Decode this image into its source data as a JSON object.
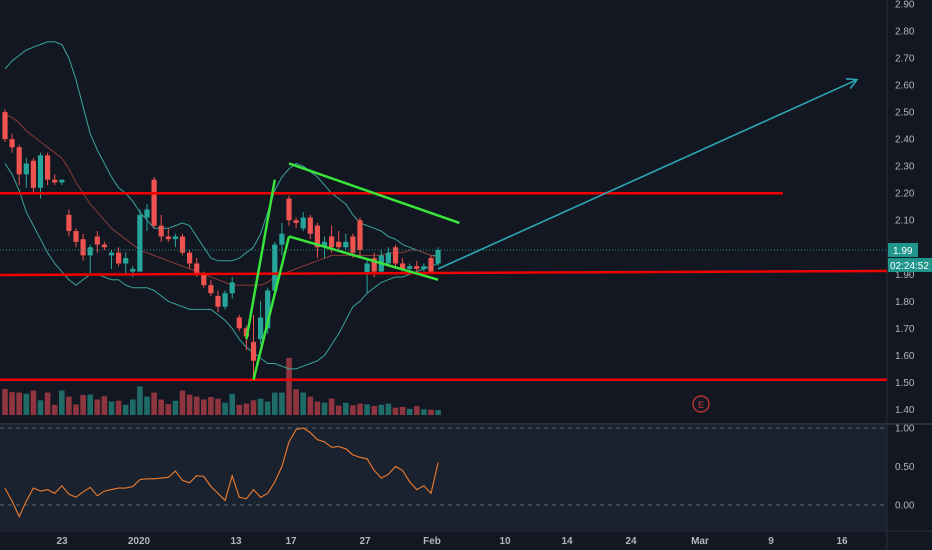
{
  "chart_data": [
    {
      "type": "candlestick",
      "title": "",
      "y_axis": {
        "ticks": [
          "2.90",
          "2.80",
          "2.70",
          "2.60",
          "2.50",
          "2.40",
          "2.30",
          "2.20",
          "2.10",
          "2.00",
          "1.90",
          "1.80",
          "1.70",
          "1.60",
          "1.50",
          "1.40"
        ],
        "range": [
          1.36,
          2.92
        ],
        "position": "right"
      },
      "x_axis": {
        "ticks": [
          "23",
          "2020",
          "13",
          "17",
          "27",
          "Feb",
          "10",
          "14",
          "24",
          "Mar",
          "9",
          "16"
        ]
      },
      "last_price": {
        "value": "1.99",
        "countdown": "02:24:52"
      },
      "candles": [
        {
          "o": 2.5,
          "h": 2.51,
          "l": 2.39,
          "c": 2.4
        },
        {
          "o": 2.4,
          "h": 2.42,
          "l": 2.35,
          "c": 2.37
        },
        {
          "o": 2.37,
          "h": 2.38,
          "l": 2.23,
          "c": 2.27
        },
        {
          "o": 2.27,
          "h": 2.33,
          "l": 2.22,
          "c": 2.31
        },
        {
          "o": 2.32,
          "h": 2.33,
          "l": 2.2,
          "c": 2.22
        },
        {
          "o": 2.22,
          "h": 2.35,
          "l": 2.18,
          "c": 2.34
        },
        {
          "o": 2.34,
          "h": 2.35,
          "l": 2.23,
          "c": 2.25
        },
        {
          "o": 2.25,
          "h": 2.27,
          "l": 2.23,
          "c": 2.24
        },
        {
          "o": 2.24,
          "h": 2.25,
          "l": 2.23,
          "c": 2.25
        },
        {
          "o": 2.12,
          "h": 2.14,
          "l": 2.04,
          "c": 2.06
        },
        {
          "o": 2.06,
          "h": 2.07,
          "l": 2.0,
          "c": 2.02
        },
        {
          "o": 2.03,
          "h": 2.05,
          "l": 1.95,
          "c": 1.97
        },
        {
          "o": 1.97,
          "h": 2.01,
          "l": 1.9,
          "c": 2.0
        },
        {
          "o": 2.04,
          "h": 2.06,
          "l": 1.98,
          "c": 2.01
        },
        {
          "o": 2.01,
          "h": 2.02,
          "l": 1.99,
          "c": 2.0
        },
        {
          "o": 1.97,
          "h": 1.99,
          "l": 1.92,
          "c": 1.98
        },
        {
          "o": 1.98,
          "h": 2.0,
          "l": 1.93,
          "c": 1.94
        },
        {
          "o": 1.94,
          "h": 1.98,
          "l": 1.9,
          "c": 1.96
        },
        {
          "o": 1.91,
          "h": 1.93,
          "l": 1.89,
          "c": 1.92
        },
        {
          "o": 1.91,
          "h": 2.14,
          "l": 1.91,
          "c": 2.12
        },
        {
          "o": 2.11,
          "h": 2.16,
          "l": 2.06,
          "c": 2.14
        },
        {
          "o": 2.25,
          "h": 2.26,
          "l": 2.07,
          "c": 2.08
        },
        {
          "o": 2.08,
          "h": 2.12,
          "l": 2.02,
          "c": 2.04
        },
        {
          "o": 2.04,
          "h": 2.07,
          "l": 2.02,
          "c": 2.03
        },
        {
          "o": 2.03,
          "h": 2.05,
          "l": 2.0,
          "c": 2.04
        },
        {
          "o": 2.04,
          "h": 2.05,
          "l": 1.97,
          "c": 1.98
        },
        {
          "o": 1.98,
          "h": 1.99,
          "l": 1.92,
          "c": 1.94
        },
        {
          "o": 1.94,
          "h": 1.96,
          "l": 1.89,
          "c": 1.9
        },
        {
          "o": 1.9,
          "h": 1.91,
          "l": 1.85,
          "c": 1.86
        },
        {
          "o": 1.86,
          "h": 1.88,
          "l": 1.82,
          "c": 1.83
        },
        {
          "o": 1.82,
          "h": 1.84,
          "l": 1.76,
          "c": 1.78
        },
        {
          "o": 1.78,
          "h": 1.84,
          "l": 1.77,
          "c": 1.83
        },
        {
          "o": 1.83,
          "h": 1.89,
          "l": 1.81,
          "c": 1.87
        },
        {
          "o": 1.74,
          "h": 1.75,
          "l": 1.69,
          "c": 1.7
        },
        {
          "o": 1.7,
          "h": 1.71,
          "l": 1.62,
          "c": 1.67
        },
        {
          "o": 1.65,
          "h": 1.75,
          "l": 1.52,
          "c": 1.58
        },
        {
          "o": 1.66,
          "h": 1.8,
          "l": 1.64,
          "c": 1.74
        },
        {
          "o": 1.7,
          "h": 1.85,
          "l": 1.68,
          "c": 1.84
        },
        {
          "o": 1.84,
          "h": 2.02,
          "l": 1.83,
          "c": 2.01
        },
        {
          "o": 2.01,
          "h": 2.09,
          "l": 1.97,
          "c": 2.05
        },
        {
          "o": 2.18,
          "h": 2.19,
          "l": 2.08,
          "c": 2.1
        },
        {
          "o": 2.1,
          "h": 2.11,
          "l": 2.07,
          "c": 2.09
        },
        {
          "o": 2.07,
          "h": 2.13,
          "l": 2.06,
          "c": 2.11
        },
        {
          "o": 2.11,
          "h": 2.12,
          "l": 2.03,
          "c": 2.05
        },
        {
          "o": 2.08,
          "h": 2.09,
          "l": 1.96,
          "c": 2.0
        },
        {
          "o": 2.0,
          "h": 2.04,
          "l": 1.96,
          "c": 2.02
        },
        {
          "o": 2.04,
          "h": 2.08,
          "l": 1.98,
          "c": 2.0
        },
        {
          "o": 2.02,
          "h": 2.06,
          "l": 1.99,
          "c": 2.0
        },
        {
          "o": 2.0,
          "h": 2.05,
          "l": 1.99,
          "c": 2.02
        },
        {
          "o": 2.04,
          "h": 2.05,
          "l": 1.96,
          "c": 1.98
        },
        {
          "o": 2.1,
          "h": 2.11,
          "l": 1.97,
          "c": 1.99
        },
        {
          "o": 1.9,
          "h": 1.96,
          "l": 1.83,
          "c": 1.94
        },
        {
          "o": 1.96,
          "h": 1.98,
          "l": 1.89,
          "c": 1.91
        },
        {
          "o": 1.91,
          "h": 1.99,
          "l": 1.9,
          "c": 1.97
        },
        {
          "o": 1.94,
          "h": 2.0,
          "l": 1.93,
          "c": 1.98
        },
        {
          "o": 2.0,
          "h": 2.01,
          "l": 1.92,
          "c": 1.94
        },
        {
          "o": 1.94,
          "h": 1.96,
          "l": 1.91,
          "c": 1.92
        },
        {
          "o": 1.92,
          "h": 1.94,
          "l": 1.9,
          "c": 1.93
        },
        {
          "o": 1.93,
          "h": 1.95,
          "l": 1.91,
          "c": 1.92
        },
        {
          "o": 1.92,
          "h": 1.94,
          "l": 1.91,
          "c": 1.93
        },
        {
          "o": 1.96,
          "h": 1.97,
          "l": 1.9,
          "c": 1.91
        },
        {
          "o": 1.94,
          "h": 2.0,
          "l": 1.93,
          "c": 1.99
        }
      ],
      "volume": [
        0.64,
        0.56,
        0.55,
        0.52,
        0.6,
        0.36,
        0.55,
        0.25,
        0.6,
        0.45,
        0.26,
        0.49,
        0.5,
        0.38,
        0.46,
        0.33,
        0.35,
        0.25,
        0.38,
        0.7,
        0.45,
        0.55,
        0.38,
        0.27,
        0.35,
        0.6,
        0.5,
        0.45,
        0.38,
        0.44,
        0.4,
        0.3,
        0.52,
        0.25,
        0.28,
        0.36,
        0.4,
        0.33,
        0.55,
        0.55,
        1.4,
        0.63,
        0.55,
        0.45,
        0.33,
        0.3,
        0.4,
        0.23,
        0.3,
        0.24,
        0.28,
        0.26,
        0.22,
        0.25,
        0.28,
        0.18,
        0.2,
        0.15,
        0.22,
        0.14,
        0.13,
        0.12
      ],
      "bollinger_upper": [
        2.66,
        2.69,
        2.71,
        2.73,
        2.74,
        2.75,
        2.76,
        2.76,
        2.75,
        2.7,
        2.62,
        2.52,
        2.42,
        2.36,
        2.31,
        2.26,
        2.22,
        2.2,
        2.17,
        2.13,
        2.1,
        2.07,
        2.07,
        2.07,
        2.08,
        2.09,
        2.08,
        2.04,
        2.0,
        1.96,
        1.95,
        1.95,
        1.95,
        1.96,
        1.98,
        2.0,
        2.05,
        2.13,
        2.21,
        2.26,
        2.29,
        2.31,
        2.3,
        2.28,
        2.26,
        2.23,
        2.2,
        2.18,
        2.16,
        2.12,
        2.09,
        2.08,
        2.07,
        2.06,
        2.04,
        2.03,
        2.01,
        2.0,
        1.99,
        1.98,
        1.97,
        1.97
      ],
      "bollinger_basis": [
        2.49,
        2.48,
        2.46,
        2.43,
        2.41,
        2.39,
        2.37,
        2.35,
        2.33,
        2.29,
        2.24,
        2.2,
        2.16,
        2.13,
        2.1,
        2.07,
        2.05,
        2.03,
        2.01,
        1.99,
        1.98,
        1.97,
        1.96,
        1.95,
        1.94,
        1.93,
        1.92,
        1.91,
        1.9,
        1.89,
        1.88,
        1.87,
        1.86,
        1.86,
        1.86,
        1.86,
        1.86,
        1.87,
        1.89,
        1.9,
        1.91,
        1.92,
        1.93,
        1.94,
        1.95,
        1.96,
        1.97,
        1.97,
        1.97,
        1.97,
        1.97,
        1.97,
        1.97,
        1.97,
        1.98,
        1.98,
        1.98,
        1.99,
        1.99,
        1.98,
        1.97,
        1.96
      ],
      "bollinger_lower": [
        2.31,
        2.27,
        2.21,
        2.13,
        2.08,
        2.03,
        1.98,
        1.94,
        1.91,
        1.88,
        1.86,
        1.88,
        1.9,
        1.9,
        1.89,
        1.88,
        1.88,
        1.86,
        1.85,
        1.85,
        1.85,
        1.84,
        1.82,
        1.8,
        1.79,
        1.78,
        1.77,
        1.77,
        1.77,
        1.77,
        1.75,
        1.73,
        1.7,
        1.66,
        1.63,
        1.61,
        1.59,
        1.57,
        1.57,
        1.56,
        1.55,
        1.55,
        1.56,
        1.57,
        1.58,
        1.6,
        1.64,
        1.68,
        1.73,
        1.78,
        1.8,
        1.83,
        1.85,
        1.87,
        1.88,
        1.89,
        1.89,
        1.9,
        1.91,
        1.92,
        1.93,
        1.94
      ],
      "horizontal_lines": [
        2.2,
        1.905,
        1.51
      ],
      "green_trendlines": [
        {
          "from": [
            34,
            1.66
          ],
          "to": [
            38,
            2.25
          ]
        },
        {
          "from": [
            35,
            1.51
          ],
          "to": [
            40,
            2.04
          ]
        },
        {
          "from": [
            40,
            2.31
          ],
          "to": [
            64,
            2.09
          ]
        },
        {
          "from": [
            40,
            2.04
          ],
          "to": [
            61,
            1.88
          ]
        }
      ],
      "projection_arrow": {
        "from": [
          61,
          1.92
        ],
        "to": [
          120,
          2.62
        ]
      },
      "event_marker": "E"
    },
    {
      "type": "line",
      "title": "",
      "y_axis": {
        "ticks": [
          "1.00",
          "0.50",
          "0.00"
        ],
        "range": [
          -0.16,
          1.08
        ]
      },
      "values": [
        0.22,
        0.05,
        -0.15,
        0.05,
        0.22,
        0.18,
        0.2,
        0.15,
        0.25,
        0.14,
        0.1,
        0.17,
        0.23,
        0.12,
        0.18,
        0.2,
        0.22,
        0.22,
        0.24,
        0.33,
        0.34,
        0.34,
        0.35,
        0.36,
        0.44,
        0.32,
        0.29,
        0.38,
        0.37,
        0.24,
        0.15,
        0.06,
        0.38,
        0.1,
        0.08,
        0.2,
        0.1,
        0.15,
        0.3,
        0.5,
        0.82,
        0.98,
        1.0,
        0.94,
        0.85,
        0.82,
        0.75,
        0.76,
        0.73,
        0.65,
        0.62,
        0.6,
        0.45,
        0.35,
        0.4,
        0.5,
        0.45,
        0.3,
        0.2,
        0.25,
        0.15,
        0.55
      ]
    }
  ],
  "colors": {
    "background": "#131722",
    "up": "#26a69a",
    "down": "#ef5350",
    "up_volume": "#1f6b67",
    "down_volume": "#8e3540",
    "bollinger": "#3aa39b",
    "basis": "#8b3a3a",
    "horizontal": "#f00000",
    "trend": "#39e53a",
    "arrow": "#2aa8b4",
    "oscillator": "#f07c2d",
    "price_badge": "#21968c",
    "axis_text": "#b2b5be"
  }
}
